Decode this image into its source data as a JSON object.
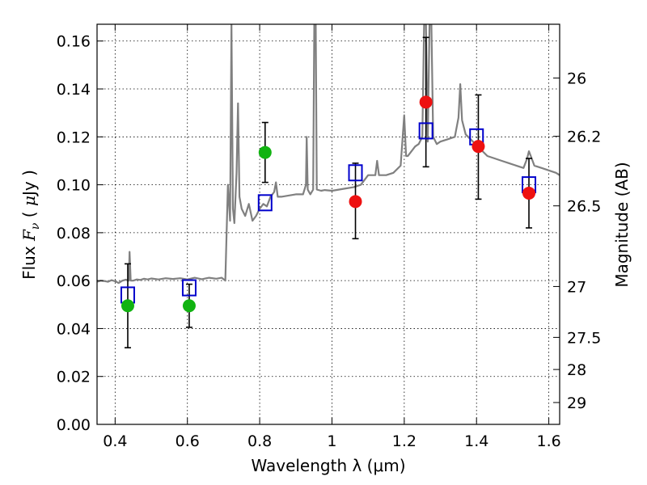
{
  "chart_data": {
    "type": "scatter",
    "xlabel": "Wavelength  λ (μm)",
    "ylabel": "Flux  F_ν  ( μJy )",
    "ylabel_right": "Magnitude (AB)",
    "xlim": [
      0.35,
      1.63
    ],
    "ylim": [
      0.0,
      0.167
    ],
    "grid": true,
    "x_ticks": [
      {
        "value": 0.4,
        "label": "0.4"
      },
      {
        "value": 0.6,
        "label": "0.6"
      },
      {
        "value": 0.8,
        "label": "0.8"
      },
      {
        "value": 1.0,
        "label": "1"
      },
      {
        "value": 1.2,
        "label": "1.2"
      },
      {
        "value": 1.4,
        "label": "1.4"
      },
      {
        "value": 1.6,
        "label": "1.6"
      }
    ],
    "y_ticks": [
      {
        "value": 0.0,
        "label": "0.00"
      },
      {
        "value": 0.02,
        "label": "0.02"
      },
      {
        "value": 0.04,
        "label": "0.04"
      },
      {
        "value": 0.06,
        "label": "0.06"
      },
      {
        "value": 0.08,
        "label": "0.08"
      },
      {
        "value": 0.1,
        "label": "0.10"
      },
      {
        "value": 0.12,
        "label": "0.12"
      },
      {
        "value": 0.14,
        "label": "0.14"
      },
      {
        "value": 0.16,
        "label": "0.16"
      }
    ],
    "y_ticks_right": [
      {
        "label": "26",
        "mag": 26.0
      },
      {
        "label": "26.2",
        "mag": 26.2
      },
      {
        "label": "26.5",
        "mag": 26.5
      },
      {
        "label": "27",
        "mag": 27.0
      },
      {
        "label": "27.5",
        "mag": 27.5
      },
      {
        "label": "28",
        "mag": 28.0
      },
      {
        "label": "29",
        "mag": 29.0
      }
    ],
    "series": [
      {
        "role": "model-spectrum",
        "color": "#808080",
        "points": [
          [
            0.35,
            0.0595
          ],
          [
            0.36,
            0.06
          ],
          [
            0.37,
            0.0598
          ],
          [
            0.38,
            0.0595
          ],
          [
            0.39,
            0.0602
          ],
          [
            0.4,
            0.0597
          ],
          [
            0.41,
            0.059
          ],
          [
            0.42,
            0.06
          ],
          [
            0.43,
            0.0604
          ],
          [
            0.438,
            0.06
          ],
          [
            0.44,
            0.072
          ],
          [
            0.443,
            0.06
          ],
          [
            0.45,
            0.06
          ],
          [
            0.46,
            0.0605
          ],
          [
            0.47,
            0.0603
          ],
          [
            0.48,
            0.0608
          ],
          [
            0.49,
            0.0605
          ],
          [
            0.5,
            0.0609
          ],
          [
            0.52,
            0.0605
          ],
          [
            0.54,
            0.061
          ],
          [
            0.56,
            0.0607
          ],
          [
            0.58,
            0.061
          ],
          [
            0.6,
            0.0605
          ],
          [
            0.62,
            0.0612
          ],
          [
            0.64,
            0.0606
          ],
          [
            0.66,
            0.0612
          ],
          [
            0.68,
            0.0608
          ],
          [
            0.695,
            0.0612
          ],
          [
            0.705,
            0.06
          ],
          [
            0.712,
            0.1
          ],
          [
            0.718,
            0.085
          ],
          [
            0.722,
            0.167
          ],
          [
            0.726,
            0.09
          ],
          [
            0.73,
            0.084
          ],
          [
            0.736,
            0.105
          ],
          [
            0.74,
            0.134
          ],
          [
            0.744,
            0.095
          ],
          [
            0.75,
            0.09
          ],
          [
            0.76,
            0.087
          ],
          [
            0.77,
            0.092
          ],
          [
            0.78,
            0.085
          ],
          [
            0.79,
            0.087
          ],
          [
            0.8,
            0.09
          ],
          [
            0.81,
            0.092
          ],
          [
            0.82,
            0.091
          ],
          [
            0.83,
            0.095
          ],
          [
            0.84,
            0.097
          ],
          [
            0.845,
            0.101
          ],
          [
            0.85,
            0.095
          ],
          [
            0.86,
            0.095
          ],
          [
            0.88,
            0.0955
          ],
          [
            0.9,
            0.096
          ],
          [
            0.92,
            0.096
          ],
          [
            0.928,
            0.1
          ],
          [
            0.93,
            0.12
          ],
          [
            0.933,
            0.098
          ],
          [
            0.94,
            0.096
          ],
          [
            0.948,
            0.098
          ],
          [
            0.951,
            0.167
          ],
          [
            0.955,
            0.167
          ],
          [
            0.958,
            0.098
          ],
          [
            0.97,
            0.0975
          ],
          [
            0.98,
            0.0978
          ],
          [
            1.0,
            0.0975
          ],
          [
            1.02,
            0.098
          ],
          [
            1.04,
            0.0985
          ],
          [
            1.06,
            0.099
          ],
          [
            1.08,
            0.1
          ],
          [
            1.1,
            0.104
          ],
          [
            1.12,
            0.104
          ],
          [
            1.125,
            0.11
          ],
          [
            1.13,
            0.104
          ],
          [
            1.15,
            0.104
          ],
          [
            1.17,
            0.105
          ],
          [
            1.19,
            0.108
          ],
          [
            1.2,
            0.129
          ],
          [
            1.205,
            0.112
          ],
          [
            1.21,
            0.112
          ],
          [
            1.22,
            0.114
          ],
          [
            1.23,
            0.116
          ],
          [
            1.24,
            0.117
          ],
          [
            1.25,
            0.12
          ],
          [
            1.255,
            0.167
          ],
          [
            1.26,
            0.167
          ],
          [
            1.265,
            0.118
          ],
          [
            1.27,
            0.167
          ],
          [
            1.275,
            0.167
          ],
          [
            1.28,
            0.12
          ],
          [
            1.29,
            0.117
          ],
          [
            1.3,
            0.118
          ],
          [
            1.32,
            0.119
          ],
          [
            1.34,
            0.12
          ],
          [
            1.35,
            0.128
          ],
          [
            1.355,
            0.142
          ],
          [
            1.36,
            0.127
          ],
          [
            1.37,
            0.121
          ],
          [
            1.39,
            0.118
          ],
          [
            1.41,
            0.115
          ],
          [
            1.43,
            0.112
          ],
          [
            1.45,
            0.111
          ],
          [
            1.47,
            0.11
          ],
          [
            1.49,
            0.109
          ],
          [
            1.51,
            0.108
          ],
          [
            1.53,
            0.107
          ],
          [
            1.54,
            0.111
          ],
          [
            1.545,
            0.114
          ],
          [
            1.55,
            0.112
          ],
          [
            1.56,
            0.108
          ],
          [
            1.58,
            0.107
          ],
          [
            1.6,
            0.106
          ],
          [
            1.62,
            0.105
          ],
          [
            1.63,
            0.104
          ]
        ]
      },
      {
        "role": "model-photometry",
        "color": "#0000cc",
        "marker": "open-square",
        "points": [
          [
            0.435,
            0.054
          ],
          [
            0.605,
            0.057
          ],
          [
            0.815,
            0.0925
          ],
          [
            1.065,
            0.105
          ],
          [
            1.26,
            0.1225
          ],
          [
            1.4,
            0.12
          ],
          [
            1.545,
            0.1
          ]
        ]
      },
      {
        "role": "observed-green",
        "color": "#11b311",
        "marker": "filled-circle",
        "points": [
          {
            "x": 0.435,
            "y": 0.0495,
            "yerr_low": 0.032,
            "yerr_high": 0.067
          },
          {
            "x": 0.605,
            "y": 0.0495,
            "yerr_low": 0.0405,
            "yerr_high": 0.0585
          },
          {
            "x": 0.815,
            "y": 0.1135,
            "yerr_low": 0.101,
            "yerr_high": 0.126
          }
        ]
      },
      {
        "role": "observed-red",
        "color": "#ee1111",
        "marker": "filled-circle",
        "points": [
          {
            "x": 1.065,
            "y": 0.093,
            "yerr_low": 0.0775,
            "yerr_high": 0.109
          },
          {
            "x": 1.26,
            "y": 0.1345,
            "yerr_low": 0.1075,
            "yerr_high": 0.1615
          },
          {
            "x": 1.405,
            "y": 0.116,
            "yerr_low": 0.094,
            "yerr_high": 0.1375
          },
          {
            "x": 1.545,
            "y": 0.0965,
            "yerr_low": 0.082,
            "yerr_high": 0.111
          }
        ]
      }
    ]
  }
}
